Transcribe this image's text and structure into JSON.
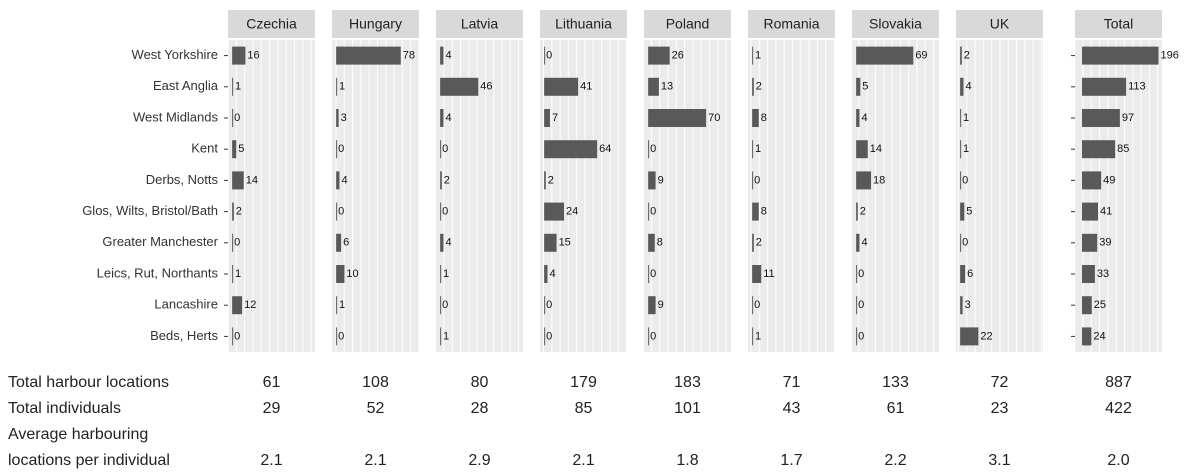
{
  "chart_data": {
    "type": "bar",
    "orientation": "horizontal",
    "categories": [
      "West Yorkshire",
      "East Anglia",
      "West Midlands",
      "Kent",
      "Derbs, Notts",
      "Glos, Wilts, Bristol/Bath",
      "Greater Manchester",
      "Leics, Rut, Northants",
      "Lancashire",
      "Beds, Herts"
    ],
    "color": "#595959",
    "series": [
      {
        "name": "Czechia",
        "values": [
          16,
          1,
          0,
          5,
          14,
          2,
          0,
          1,
          12,
          0
        ],
        "xlim": [
          -5,
          100
        ]
      },
      {
        "name": "Hungary",
        "values": [
          78,
          1,
          3,
          0,
          4,
          0,
          6,
          10,
          1,
          0
        ],
        "xlim": [
          -5,
          100
        ]
      },
      {
        "name": "Latvia",
        "values": [
          4,
          46,
          4,
          0,
          2,
          0,
          4,
          1,
          0,
          1
        ],
        "xlim": [
          -5,
          100
        ]
      },
      {
        "name": "Lithuania",
        "values": [
          0,
          41,
          7,
          64,
          2,
          24,
          15,
          4,
          0,
          0
        ],
        "xlim": [
          -5,
          100
        ]
      },
      {
        "name": "Poland",
        "values": [
          26,
          13,
          70,
          0,
          9,
          0,
          8,
          0,
          9,
          0
        ],
        "xlim": [
          -5,
          100
        ]
      },
      {
        "name": "Romania",
        "values": [
          1,
          2,
          8,
          1,
          0,
          8,
          2,
          11,
          0,
          1
        ],
        "xlim": [
          -5,
          100
        ]
      },
      {
        "name": "Slovakia",
        "values": [
          69,
          5,
          4,
          14,
          18,
          2,
          4,
          0,
          0,
          0
        ],
        "xlim": [
          -5,
          100
        ]
      },
      {
        "name": "UK",
        "values": [
          2,
          4,
          1,
          1,
          0,
          5,
          0,
          6,
          3,
          22
        ],
        "xlim": [
          -5,
          100
        ]
      },
      {
        "name": "Total",
        "values": [
          196,
          113,
          97,
          85,
          49,
          41,
          39,
          33,
          25,
          24
        ],
        "xlim": [
          -18,
          205
        ]
      }
    ]
  },
  "table": {
    "rows": [
      {
        "label": [
          "Total harbour locations"
        ],
        "cells": [
          "61",
          "108",
          "80",
          "179",
          "183",
          "71",
          "133",
          "72",
          "887"
        ]
      },
      {
        "label": [
          "Total individuals"
        ],
        "cells": [
          "29",
          "52",
          "28",
          "85",
          "101",
          "43",
          "61",
          "23",
          "422"
        ]
      },
      {
        "label": [
          "Average harbouring",
          "locations per individual"
        ],
        "cells": [
          "2.1",
          "2.1",
          "2.9",
          "2.1",
          "1.8",
          "1.7",
          "2.2",
          "3.1",
          "2.0"
        ]
      }
    ]
  }
}
